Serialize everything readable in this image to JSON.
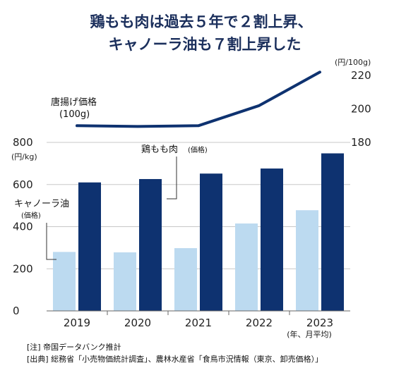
{
  "chart_data": {
    "type": "bar",
    "title_lines": [
      "鶏もも肉は過去５年で２割上昇、",
      "キャノーラ油も７割上昇した"
    ],
    "categories": [
      "2019",
      "2020",
      "2021",
      "2022",
      "2023"
    ],
    "x_unit": "(年、月平均)",
    "series": [
      {
        "name": "キャノーラ油",
        "name_note": "(価格)",
        "kind": "bar",
        "color": "#bcdaf0",
        "axis": "left",
        "values": [
          280,
          278,
          298,
          415,
          478
        ]
      },
      {
        "name": "鶏もも肉",
        "name_note": "(価格)",
        "kind": "bar",
        "color": "#0e3270",
        "axis": "left",
        "values": [
          610,
          626,
          652,
          676,
          748
        ]
      },
      {
        "name": "唐揚げ価格",
        "name_note": "(100g)",
        "kind": "line",
        "color": "#0e3270",
        "axis": "right",
        "values": [
          190,
          189.5,
          190,
          202,
          222
        ]
      }
    ],
    "left_axis": {
      "unit": "(円/kg)",
      "ylim": [
        0,
        800
      ],
      "ticks": [
        "0",
        "200",
        "400",
        "600",
        "800"
      ]
    },
    "right_axis": {
      "unit": "(円/100g)",
      "ylim": [
        180,
        220
      ],
      "ticks": [
        "180",
        "200",
        "220"
      ]
    },
    "notes": [
      "[注] 帝国データバンク推計",
      "[出典]  総務省「小売物価統計調査」、農林水産省「食鳥市況情報（東京、卸売価格）」"
    ]
  }
}
